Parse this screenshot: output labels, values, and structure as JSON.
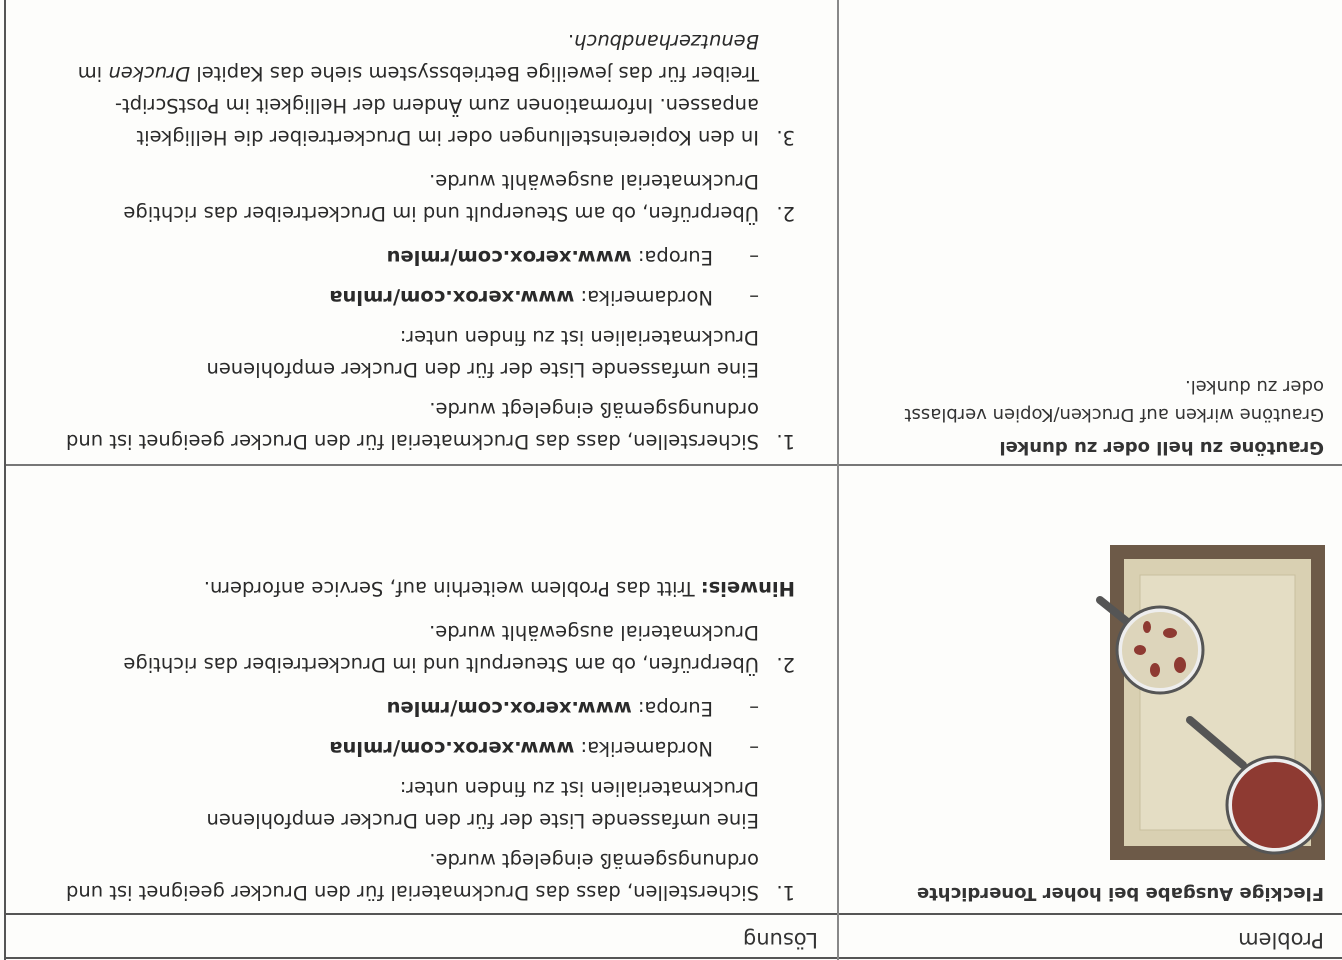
{
  "header": {
    "problem": "Problem",
    "solution": "Lösung"
  },
  "rows": [
    {
      "problem_title": "Fleckige Ausgabe bei hoher Tonerdichte",
      "steps": [
        {
          "number": "1.",
          "text": "Sicherstellen, dass das Druckmaterial für den Drucker geeignet ist und ordnungsgemäß eingelegt wurde.",
          "detail": "Eine umfassende Liste der für den Drucker empfohlenen Druckmaterialien ist zu finden unter:",
          "links": [
            {
              "bullet": "–",
              "region": "Nordamerika: ",
              "url": "www.xerox.com/rmlna"
            },
            {
              "bullet": "–",
              "region": "Europa: ",
              "url": "www.xerox.com/rmleu"
            }
          ]
        },
        {
          "number": "2.",
          "text": "Überprüfen, ob am Steuerpult und im Druckertreiber das richtige Druckmaterial ausgewählt wurde."
        }
      ],
      "note": {
        "label": "Hinweis:",
        "text": " Tritt das Problem weiterhin auf, Service anfordern."
      }
    },
    {
      "problem_title": "Grautöne zu hell oder zu dunkel",
      "problem_text": "Grautöne wirken auf Drucken/Kopien verblasst oder zu dunkel.",
      "steps": [
        {
          "number": "1.",
          "text": "Sicherstellen, dass das Druckmaterial für den Drucker geeignet ist und ordnungsgemäß eingelegt wurde.",
          "detail": "Eine umfassende Liste der für den Drucker empfohlenen Druckmaterialien ist zu finden unter:",
          "links": [
            {
              "bullet": "–",
              "region": "Nordamerika: ",
              "url": "www.xerox.com/rmlna"
            },
            {
              "bullet": "–",
              "region": "Europa: ",
              "url": "www.xerox.com/rmleu"
            }
          ]
        },
        {
          "number": "2.",
          "text": "Überprüfen, ob am Steuerpult und im Druckertreiber das richtige Druckmaterial ausgewählt wurde."
        },
        {
          "number": "3.",
          "parts": [
            {
              "text": "In den Kopiereinstellungen oder im Druckertreiber die Helligkeit anpassen. Informationen zum Ändern der Helligkeit im PostScript-Treiber für das jeweilige Betriebssystem siehe das Kapitel "
            },
            {
              "text": "Drucken",
              "italic": true
            },
            {
              "text": " im "
            },
            {
              "text": "Benutzerhandbuch",
              "italic": true
            },
            {
              "text": "."
            }
          ]
        }
      ]
    }
  ]
}
